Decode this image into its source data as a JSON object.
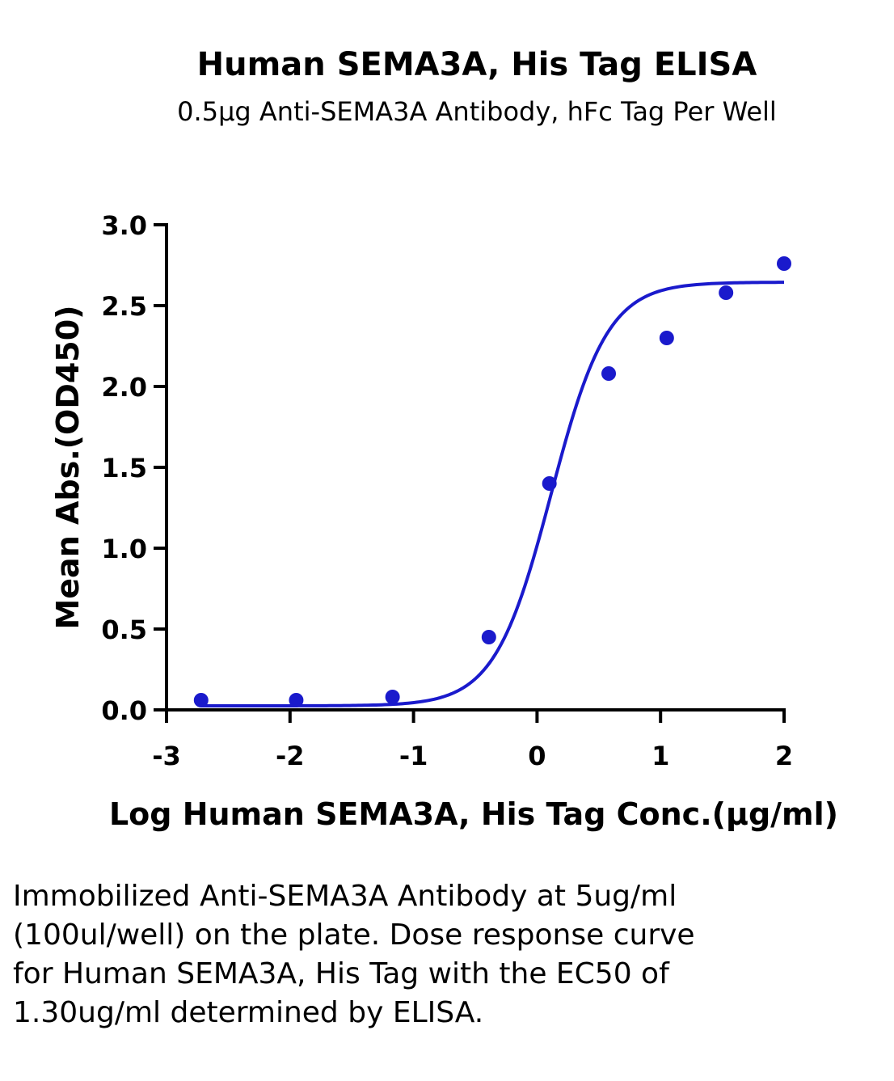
{
  "chart_data": {
    "type": "scatter",
    "title": "Human SEMA3A, His Tag ELISA",
    "subtitle": "0.5μg Anti-SEMA3A Antibody, hFc Tag Per Well",
    "xlabel": "Log Human SEMA3A, His Tag Conc.(μg/ml)",
    "ylabel": "Mean Abs.(OD450)",
    "xlim": [
      -3,
      2
    ],
    "ylim": [
      0,
      3
    ],
    "x_ticks": [
      -3,
      -2,
      -1,
      0,
      1,
      2
    ],
    "x_tick_labels": [
      "-3",
      "-2",
      "-1",
      "0",
      "1",
      "2"
    ],
    "y_ticks": [
      0,
      0.5,
      1,
      1.5,
      2,
      2.5,
      3
    ],
    "y_tick_labels": [
      "0.0",
      "0.5",
      "1.0",
      "1.5",
      "2.0",
      "2.5",
      "3.0"
    ],
    "grid": false,
    "legend": "none",
    "series": [
      {
        "x": [
          -2.72,
          -1.95,
          -1.17,
          -0.39,
          0.1,
          0.58,
          1.05,
          1.53,
          2.0
        ],
        "y": [
          0.06,
          0.06,
          0.08,
          0.45,
          1.4,
          2.08,
          2.3,
          2.58,
          2.76
        ],
        "color": "#1a1acc"
      }
    ],
    "fit": {
      "type": "4PL",
      "bottom": 0.025,
      "top": 2.645,
      "log_ec50": 0.114,
      "hill": 1.9,
      "x_range": [
        -2.72,
        2.0
      ],
      "color": "#1a1acc"
    }
  },
  "caption": "Immobilized Anti-SEMA3A Antibody at 5ug/ml (100ul/well) on the plate. Dose response curve for Human SEMA3A, His Tag with the EC50 of 1.30ug/ml determined by ELISA."
}
